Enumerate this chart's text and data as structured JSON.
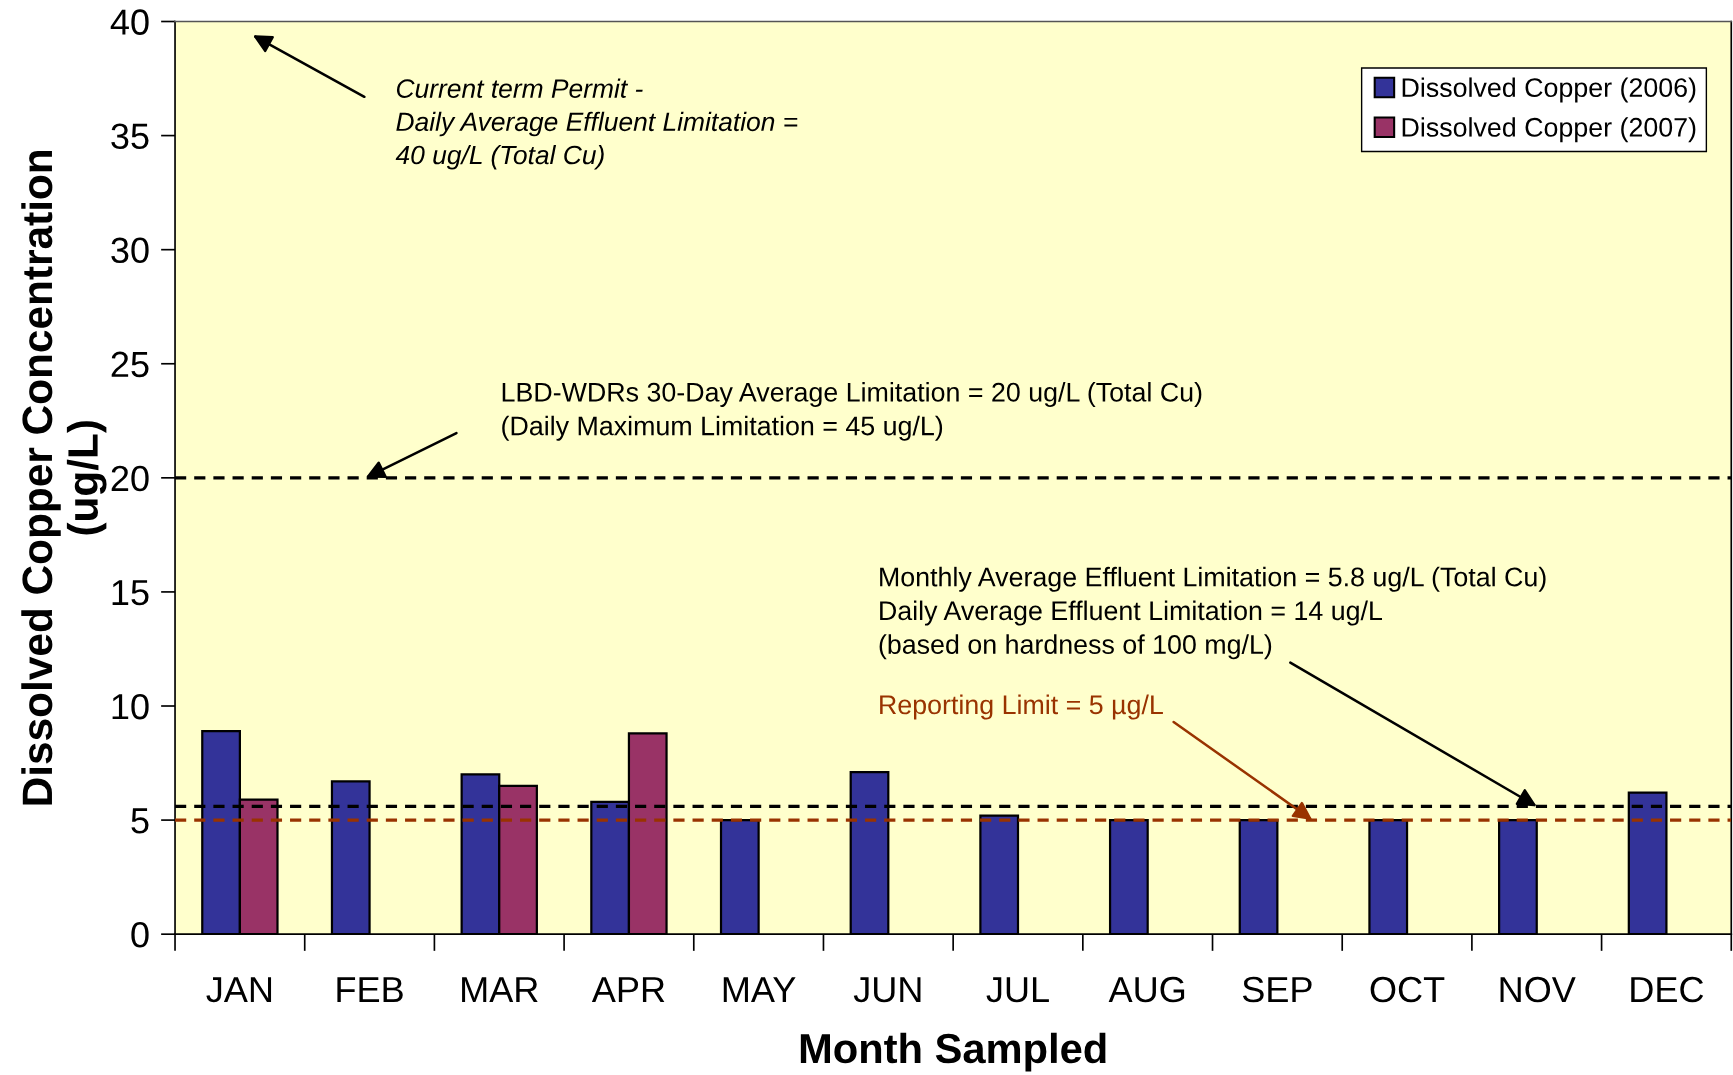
{
  "chart_data": {
    "type": "bar",
    "xlabel": "Month Sampled",
    "ylabel": "Dissolved Copper Concentration\n(ug/L)",
    "categories": [
      "JAN",
      "FEB",
      "MAR",
      "APR",
      "MAY",
      "JUN",
      "JUL",
      "AUG",
      "SEP",
      "OCT",
      "NOV",
      "DEC"
    ],
    "series": [
      {
        "name": "Dissolved Copper (2006)",
        "color": "#333399",
        "values": [
          8.9,
          6.7,
          7.0,
          5.8,
          5.0,
          7.1,
          5.2,
          5.0,
          5.0,
          5.0,
          5.0,
          6.2
        ]
      },
      {
        "name": "Dissolved Copper (2007)",
        "color": "#993366",
        "values": [
          5.9,
          null,
          6.5,
          8.8,
          null,
          null,
          null,
          null,
          null,
          null,
          null,
          null
        ]
      }
    ],
    "ylim": [
      0,
      40
    ],
    "yticks": [
      0,
      5,
      10,
      15,
      20,
      25,
      30,
      35,
      40
    ],
    "legend": "top right",
    "ref_lines": [
      {
        "axis": "y",
        "value": 20,
        "label": "LBD-WDRs 30-Day Average Limitation = 20 ug/L (Total Cu)\n(Daily Maximum Limitation = 45 ug/L)",
        "color": "#000000",
        "line_style": "dashed"
      },
      {
        "axis": "y",
        "value": 5.6,
        "color": "#000000",
        "line_style": "dashed"
      },
      {
        "axis": "y",
        "value": 5,
        "label": "Reporting Limit = 5 µg/L",
        "color": "#993300",
        "line_style": "dashed"
      }
    ],
    "annotations": [
      "Current term Permit -\nDaily Average Effluent Limitation =\n40 ug/L (Total Cu)",
      {
        "text": "Monthly Average Effluent Limitation = 5.8 ug/L (Total Cu)\nDaily Average Effluent Limitation = 14 ug/L\n(based on hardness of 100 mg/L)",
        "x": "NOV",
        "y": 5.6
      }
    ]
  }
}
